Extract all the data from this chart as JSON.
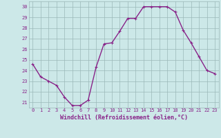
{
  "x": [
    0,
    1,
    2,
    3,
    4,
    5,
    6,
    7,
    8,
    9,
    10,
    11,
    12,
    13,
    14,
    15,
    16,
    17,
    18,
    19,
    20,
    21,
    22,
    23
  ],
  "y": [
    24.6,
    23.4,
    23.0,
    22.6,
    21.5,
    20.7,
    20.7,
    21.2,
    24.3,
    26.5,
    26.6,
    27.7,
    28.9,
    28.9,
    30.0,
    30.0,
    30.0,
    30.0,
    29.5,
    27.8,
    26.6,
    25.3,
    24.0,
    23.7
  ],
  "line_color": "#882288",
  "marker": "+",
  "marker_size": 3,
  "xlabel": "Windchill (Refroidissement éolien,°C)",
  "ylim": [
    20.5,
    30.5
  ],
  "xlim": [
    -0.5,
    23.5
  ],
  "yticks": [
    21,
    22,
    23,
    24,
    25,
    26,
    27,
    28,
    29,
    30
  ],
  "xticks": [
    0,
    1,
    2,
    3,
    4,
    5,
    6,
    7,
    8,
    9,
    10,
    11,
    12,
    13,
    14,
    15,
    16,
    17,
    18,
    19,
    20,
    21,
    22,
    23
  ],
  "bg_color": "#cce8e8",
  "grid_color": "#9ab8b8",
  "line_width": 1.0,
  "xlabel_color": "#882288",
  "tick_label_color": "#882288",
  "tick_fontsize": 5.0,
  "xlabel_fontsize": 6.0
}
